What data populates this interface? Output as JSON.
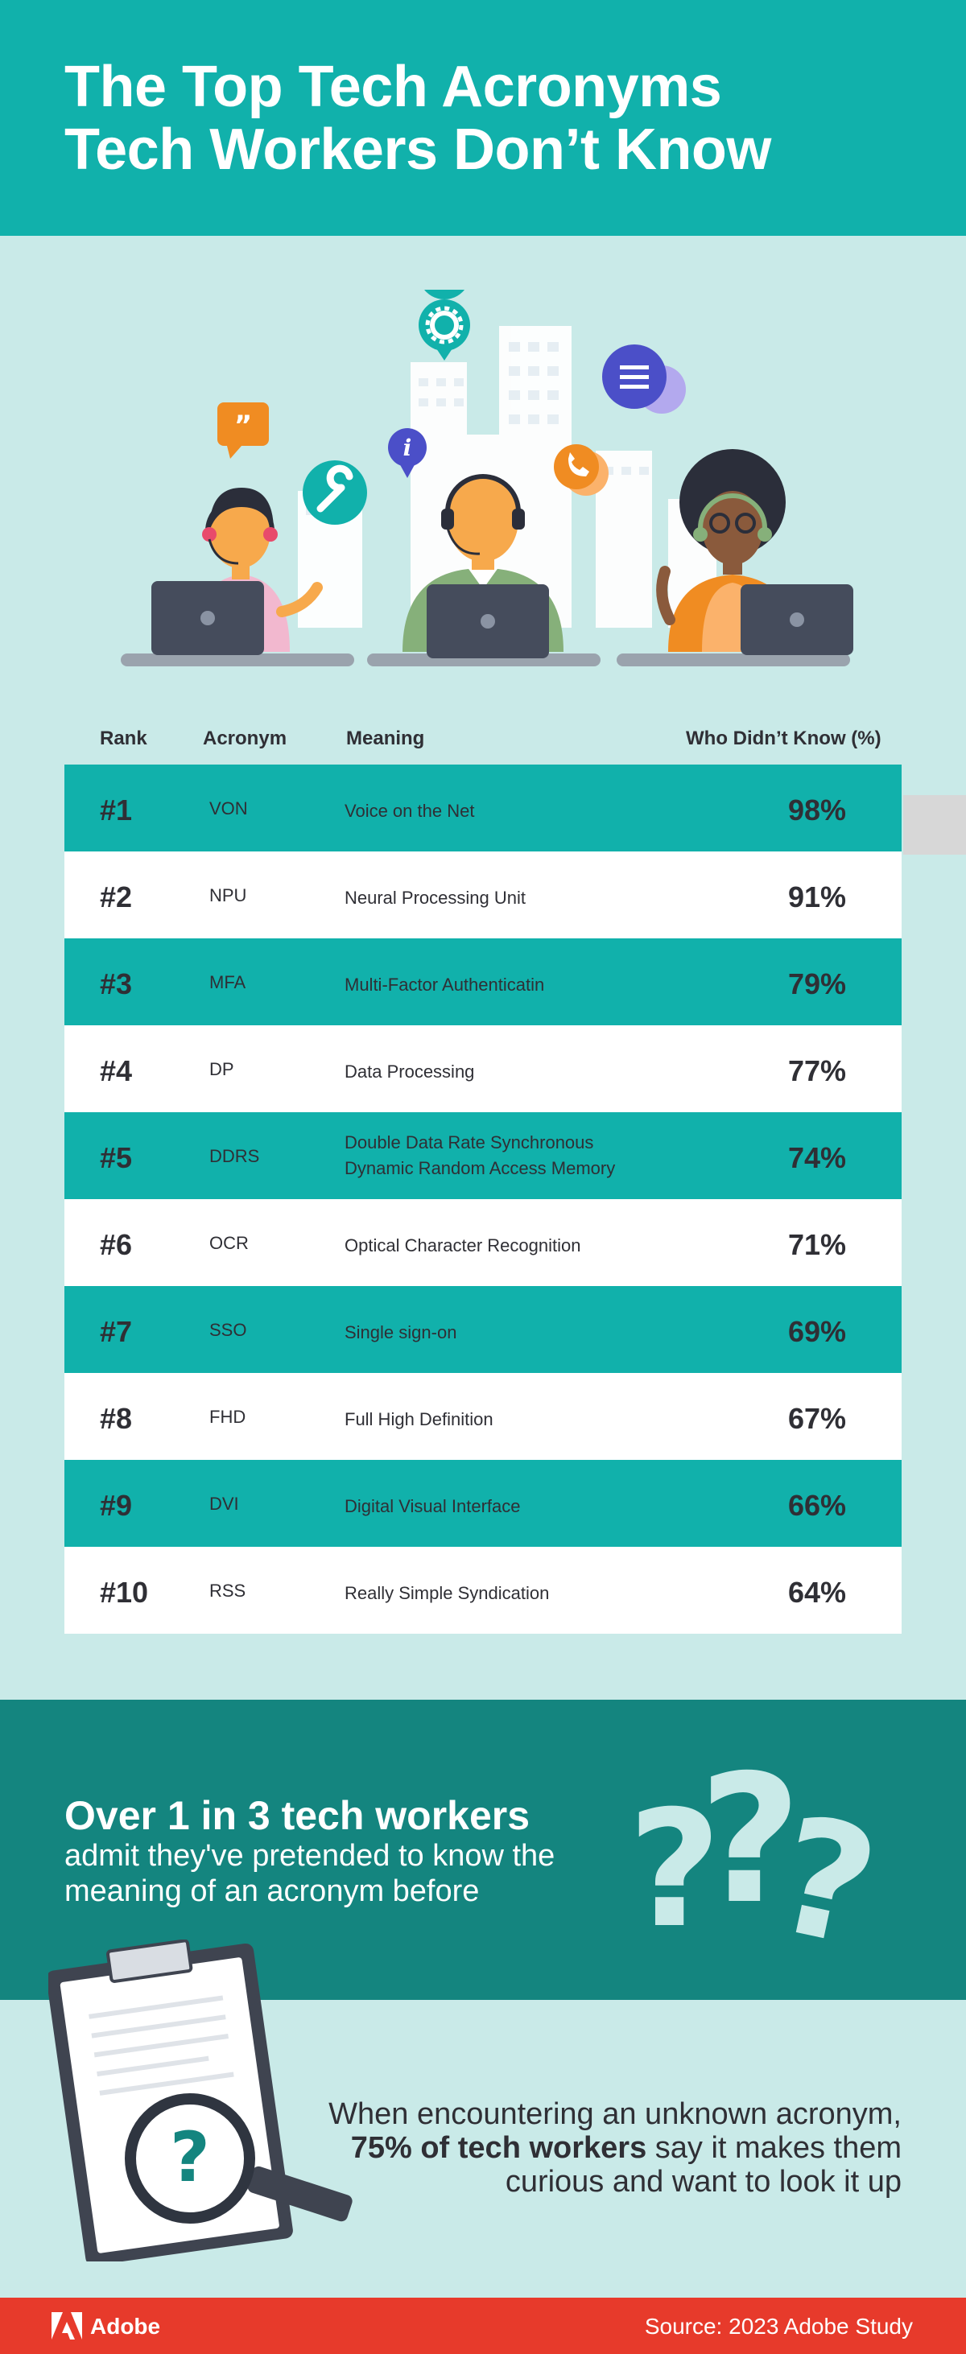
{
  "header": {
    "title_line1": "The Top Tech Acronyms",
    "title_line2": "Tech Workers Don’t Know"
  },
  "colors": {
    "teal": "#11b1ab",
    "dark_teal": "#14857f",
    "light_bg": "#c9eae8",
    "footer_red": "#e73a2b",
    "text_dark": "#2f2f35"
  },
  "illustration": {
    "icons": [
      "gear-icon",
      "quote-bubble-icon",
      "wrench-icon",
      "info-icon",
      "phone-bubble-icon",
      "menu-bubble-icon"
    ],
    "people": [
      "woman-with-headset",
      "man-with-headset",
      "woman-with-glasses-headset"
    ]
  },
  "table": {
    "headers": {
      "rank": "Rank",
      "acronym": "Acronym",
      "meaning": "Meaning",
      "pct": "Who Didn’t Know (%)"
    },
    "rows": [
      {
        "rank": "#1",
        "acronym": "VON",
        "meaning": "Voice on the Net",
        "pct": "98%",
        "value": 98
      },
      {
        "rank": "#2",
        "acronym": "NPU",
        "meaning": "Neural Processing Unit",
        "pct": "91%",
        "value": 91
      },
      {
        "rank": "#3",
        "acronym": "MFA",
        "meaning": "Multi-Factor Authenticatin",
        "pct": "79%",
        "value": 79
      },
      {
        "rank": "#4",
        "acronym": "DP",
        "meaning": "Data Processing",
        "pct": "77%",
        "value": 77
      },
      {
        "rank": "#5",
        "acronym": "DDRS",
        "meaning_line1": "Double Data Rate Synchronous",
        "meaning_line2": "Dynamic Random Access Memory",
        "pct": "74%",
        "value": 74
      },
      {
        "rank": "#6",
        "acronym": "OCR",
        "meaning": "Optical Character Recognition",
        "pct": "71%",
        "value": 71
      },
      {
        "rank": "#7",
        "acronym": "SSO",
        "meaning": "Single sign-on",
        "pct": "69%",
        "value": 69
      },
      {
        "rank": "#8",
        "acronym": "FHD",
        "meaning": "Full High Definition",
        "pct": "67%",
        "value": 67
      },
      {
        "rank": "#9",
        "acronym": "DVI",
        "meaning": "Digital Visual Interface",
        "pct": "66%",
        "value": 66
      },
      {
        "rank": "#10",
        "acronym": "RSS",
        "meaning": "Really Simple Syndication",
        "pct": "64%",
        "value": 64
      }
    ]
  },
  "stat1": {
    "headline": "Over 1 in 3 tech workers",
    "body": "admit they've pretended to know the meaning of an acronym before"
  },
  "stat2": {
    "pre": "When encountering an unknown acronym,",
    "bold": "75% of tech workers",
    "post": "say it makes them curious and want to look it up"
  },
  "footer": {
    "brand": "Adobe",
    "source": "Source: 2023 Adobe Study"
  }
}
